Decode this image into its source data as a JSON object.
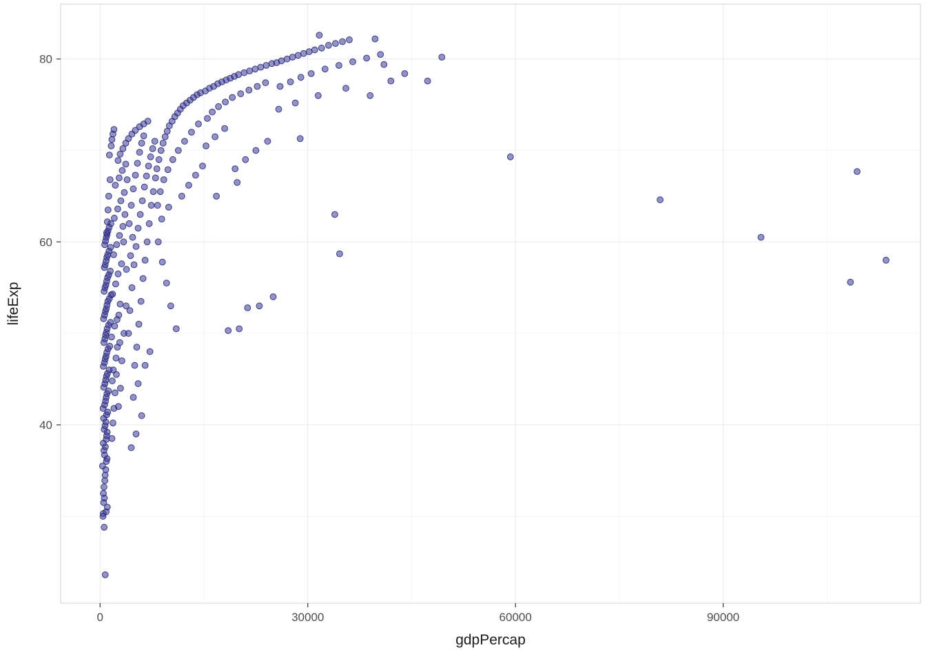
{
  "chart_data": {
    "type": "scatter",
    "title": "",
    "xlabel": "gdpPercap",
    "ylabel": "lifeExp",
    "x": {
      "label": "gdpPercap",
      "ticks": [
        0,
        30000,
        60000,
        90000
      ],
      "minor_ticks": [
        15000,
        45000,
        75000,
        105000
      ],
      "domain": [
        -5700,
        118500
      ]
    },
    "y": {
      "label": "lifeExp",
      "ticks": [
        40,
        60,
        80
      ],
      "minor_ticks": [
        30,
        50,
        70
      ],
      "domain": [
        20.5,
        86
      ]
    },
    "grid": "on",
    "legend": "none",
    "style": {
      "point_fill": "#3a3a9b",
      "point_stroke": "#22226e",
      "point_fill_opacity": 0.55,
      "point_stroke_opacity": 0.85,
      "point_radius": 4.4,
      "grid_major": "#e9e9e9",
      "grid_minor": "#f5f5f5",
      "panel_border": "#d9d9d9",
      "tick_mark": "#333333",
      "axis_text": "#4d4d4d",
      "axis_title": "#1a1a1a",
      "panel_bg": "#ffffff"
    },
    "points": [
      [
        737,
        23.6
      ],
      [
        590,
        28.8
      ],
      [
        460,
        30.3
      ],
      [
        880,
        30.5
      ],
      [
        1040,
        31.0
      ],
      [
        421,
        30.0
      ],
      [
        524,
        31.5
      ],
      [
        615,
        32.0
      ],
      [
        480,
        32.5
      ],
      [
        562,
        33.2
      ],
      [
        680,
        33.9
      ],
      [
        730,
        34.5
      ],
      [
        820,
        35.1
      ],
      [
        350,
        35.5
      ],
      [
        911,
        36.0
      ],
      [
        1005,
        36.3
      ],
      [
        640,
        36.7
      ],
      [
        555,
        37.2
      ],
      [
        760,
        37.6
      ],
      [
        470,
        38.0
      ],
      [
        889,
        38.4
      ],
      [
        950,
        38.8
      ],
      [
        1030,
        39.2
      ],
      [
        600,
        39.5
      ],
      [
        720,
        39.9
      ],
      [
        830,
        40.3
      ],
      [
        520,
        40.7
      ],
      [
        940,
        41.1
      ],
      [
        1100,
        41.4
      ],
      [
        430,
        41.8
      ],
      [
        660,
        42.2
      ],
      [
        780,
        42.6
      ],
      [
        880,
        43.0
      ],
      [
        990,
        43.4
      ],
      [
        1210,
        43.7
      ],
      [
        540,
        44.1
      ],
      [
        700,
        44.5
      ],
      [
        810,
        44.9
      ],
      [
        920,
        45.3
      ],
      [
        1060,
        45.6
      ],
      [
        1320,
        46.0
      ],
      [
        480,
        46.4
      ],
      [
        630,
        46.8
      ],
      [
        750,
        47.2
      ],
      [
        860,
        47.5
      ],
      [
        970,
        47.9
      ],
      [
        1150,
        48.3
      ],
      [
        1400,
        48.6
      ],
      [
        560,
        49.0
      ],
      [
        690,
        49.4
      ],
      [
        800,
        49.8
      ],
      [
        910,
        50.1
      ],
      [
        1020,
        50.5
      ],
      [
        1230,
        50.9
      ],
      [
        1500,
        51.2
      ],
      [
        510,
        51.6
      ],
      [
        650,
        52.0
      ],
      [
        770,
        52.4
      ],
      [
        890,
        52.7
      ],
      [
        1000,
        53.1
      ],
      [
        1120,
        53.5
      ],
      [
        1340,
        53.8
      ],
      [
        1580,
        54.2
      ],
      [
        590,
        54.6
      ],
      [
        710,
        55.0
      ],
      [
        840,
        55.3
      ],
      [
        960,
        55.7
      ],
      [
        1080,
        56.1
      ],
      [
        1260,
        56.4
      ],
      [
        1480,
        56.8
      ],
      [
        620,
        57.2
      ],
      [
        740,
        57.5
      ],
      [
        870,
        57.9
      ],
      [
        980,
        58.3
      ],
      [
        1110,
        58.6
      ],
      [
        1290,
        59.0
      ],
      [
        1530,
        59.4
      ],
      [
        670,
        59.7
      ],
      [
        790,
        60.1
      ],
      [
        900,
        60.5
      ],
      [
        1010,
        60.8
      ],
      [
        1140,
        61.2
      ],
      [
        1310,
        61.6
      ],
      [
        1550,
        62.0
      ],
      [
        950,
        61.0
      ],
      [
        1050,
        62.2
      ],
      [
        1150,
        63.5
      ],
      [
        1250,
        65.0
      ],
      [
        1450,
        66.8
      ],
      [
        1350,
        69.5
      ],
      [
        1600,
        70.5
      ],
      [
        1700,
        71.2
      ],
      [
        1850,
        71.8
      ],
      [
        2000,
        72.3
      ],
      [
        1700,
        38.5
      ],
      [
        1850,
        40.2
      ],
      [
        2000,
        41.8
      ],
      [
        2150,
        43.5
      ],
      [
        1750,
        44.8
      ],
      [
        1900,
        46.0
      ],
      [
        2300,
        47.3
      ],
      [
        2500,
        48.5
      ],
      [
        1650,
        49.6
      ],
      [
        2100,
        50.8
      ],
      [
        2700,
        52.0
      ],
      [
        2900,
        53.2
      ],
      [
        1800,
        54.3
      ],
      [
        2250,
        55.4
      ],
      [
        2600,
        56.5
      ],
      [
        3100,
        57.6
      ],
      [
        1950,
        58.6
      ],
      [
        2400,
        59.7
      ],
      [
        2800,
        60.7
      ],
      [
        3300,
        61.7
      ],
      [
        2050,
        62.6
      ],
      [
        2550,
        63.6
      ],
      [
        3000,
        64.5
      ],
      [
        3500,
        65.4
      ],
      [
        2200,
        66.2
      ],
      [
        2750,
        67.0
      ],
      [
        3200,
        67.8
      ],
      [
        3700,
        68.5
      ],
      [
        3900,
        66.8
      ],
      [
        3600,
        63.0
      ],
      [
        3400,
        60.0
      ],
      [
        3800,
        57.0
      ],
      [
        2350,
        45.5
      ],
      [
        2650,
        42.0
      ],
      [
        2950,
        44.0
      ],
      [
        3150,
        47.0
      ],
      [
        3450,
        50.0
      ],
      [
        3750,
        53.0
      ],
      [
        2850,
        49.0
      ],
      [
        2450,
        51.5
      ],
      [
        2600,
        68.9
      ],
      [
        2900,
        69.6
      ],
      [
        3300,
        70.2
      ],
      [
        3700,
        70.8
      ],
      [
        4100,
        71.3
      ],
      [
        4600,
        71.8
      ],
      [
        5100,
        72.2
      ],
      [
        5700,
        72.6
      ],
      [
        6300,
        72.9
      ],
      [
        6900,
        73.2
      ],
      [
        4500,
        37.5
      ],
      [
        5200,
        39.0
      ],
      [
        6000,
        41.0
      ],
      [
        4800,
        43.0
      ],
      [
        5500,
        44.5
      ],
      [
        6500,
        46.5
      ],
      [
        7200,
        48.0
      ],
      [
        4100,
        50.0
      ],
      [
        4300,
        52.5
      ],
      [
        4600,
        55.0
      ],
      [
        4900,
        57.5
      ],
      [
        5200,
        59.5
      ],
      [
        5500,
        61.5
      ],
      [
        5800,
        63.0
      ],
      [
        6100,
        64.5
      ],
      [
        6400,
        66.0
      ],
      [
        6700,
        67.2
      ],
      [
        7000,
        68.3
      ],
      [
        7300,
        69.3
      ],
      [
        7600,
        70.2
      ],
      [
        7900,
        71.0
      ],
      [
        4200,
        62.0
      ],
      [
        4500,
        64.0
      ],
      [
        4800,
        65.8
      ],
      [
        5100,
        67.3
      ],
      [
        5400,
        68.6
      ],
      [
        5700,
        69.8
      ],
      [
        6000,
        70.8
      ],
      [
        6300,
        71.6
      ],
      [
        4400,
        58.5
      ],
      [
        4700,
        60.5
      ],
      [
        5000,
        46.5
      ],
      [
        5300,
        48.5
      ],
      [
        5600,
        51.0
      ],
      [
        5900,
        53.5
      ],
      [
        6200,
        56.0
      ],
      [
        6500,
        58.0
      ],
      [
        6800,
        60.0
      ],
      [
        7100,
        62.0
      ],
      [
        7400,
        64.0
      ],
      [
        7700,
        65.5
      ],
      [
        8000,
        67.0
      ],
      [
        8200,
        68.0
      ],
      [
        8500,
        69.0
      ],
      [
        8800,
        70.0
      ],
      [
        9100,
        70.8
      ],
      [
        9400,
        71.5
      ],
      [
        9700,
        72.1
      ],
      [
        10000,
        72.7
      ],
      [
        10400,
        73.2
      ],
      [
        10800,
        73.7
      ],
      [
        11200,
        74.1
      ],
      [
        11600,
        74.5
      ],
      [
        12000,
        74.9
      ],
      [
        12500,
        75.2
      ],
      [
        13000,
        75.5
      ],
      [
        13500,
        75.8
      ],
      [
        14000,
        76.1
      ],
      [
        14500,
        76.3
      ],
      [
        8300,
        64.0
      ],
      [
        8700,
        65.5
      ],
      [
        9200,
        66.8
      ],
      [
        9800,
        67.9
      ],
      [
        10500,
        69.0
      ],
      [
        11300,
        70.0
      ],
      [
        12200,
        71.0
      ],
      [
        13200,
        72.0
      ],
      [
        14200,
        72.9
      ],
      [
        8400,
        60.0
      ],
      [
        9000,
        57.8
      ],
      [
        9600,
        55.5
      ],
      [
        10200,
        53.0
      ],
      [
        11000,
        50.5
      ],
      [
        8900,
        62.5
      ],
      [
        9900,
        63.8
      ],
      [
        11800,
        65.0
      ],
      [
        12800,
        66.2
      ],
      [
        13800,
        67.3
      ],
      [
        14800,
        68.3
      ],
      [
        15200,
        76.5
      ],
      [
        15800,
        76.8
      ],
      [
        16400,
        77.0
      ],
      [
        17000,
        77.3
      ],
      [
        17600,
        77.5
      ],
      [
        18200,
        77.7
      ],
      [
        18800,
        77.9
      ],
      [
        19400,
        78.1
      ],
      [
        20000,
        78.3
      ],
      [
        20800,
        78.5
      ],
      [
        21600,
        78.7
      ],
      [
        22400,
        78.9
      ],
      [
        23200,
        79.1
      ],
      [
        24000,
        79.3
      ],
      [
        24800,
        79.5
      ],
      [
        15500,
        73.5
      ],
      [
        16200,
        74.2
      ],
      [
        17100,
        74.8
      ],
      [
        18100,
        75.3
      ],
      [
        19100,
        75.8
      ],
      [
        20300,
        76.2
      ],
      [
        21500,
        76.6
      ],
      [
        22700,
        77.0
      ],
      [
        23900,
        77.4
      ],
      [
        15300,
        70.5
      ],
      [
        16600,
        71.5
      ],
      [
        18000,
        72.4
      ],
      [
        19500,
        68.0
      ],
      [
        21000,
        69.0
      ],
      [
        22500,
        70.0
      ],
      [
        24200,
        71.0
      ],
      [
        16800,
        65.0
      ],
      [
        19800,
        66.5
      ],
      [
        23000,
        53.0
      ],
      [
        21300,
        52.8
      ],
      [
        25000,
        54.0
      ],
      [
        18500,
        50.3
      ],
      [
        20100,
        50.5
      ],
      [
        25500,
        79.6
      ],
      [
        26200,
        79.8
      ],
      [
        27000,
        80.0
      ],
      [
        27800,
        80.2
      ],
      [
        28600,
        80.4
      ],
      [
        29400,
        80.6
      ],
      [
        30200,
        80.8
      ],
      [
        31000,
        81.0
      ],
      [
        32000,
        81.2
      ],
      [
        33000,
        81.5
      ],
      [
        34000,
        81.7
      ],
      [
        35000,
        81.9
      ],
      [
        36000,
        82.1
      ],
      [
        31656,
        82.6
      ],
      [
        39725,
        82.2
      ],
      [
        26000,
        77.0
      ],
      [
        27500,
        77.5
      ],
      [
        29000,
        78.0
      ],
      [
        30500,
        78.4
      ],
      [
        32500,
        78.9
      ],
      [
        34500,
        79.3
      ],
      [
        36500,
        79.7
      ],
      [
        38500,
        80.1
      ],
      [
        40500,
        80.5
      ],
      [
        25800,
        74.5
      ],
      [
        28200,
        75.2
      ],
      [
        31500,
        76.0
      ],
      [
        35500,
        76.8
      ],
      [
        28900,
        71.3
      ],
      [
        33900,
        63.0
      ],
      [
        34600,
        58.7
      ],
      [
        39000,
        76.0
      ],
      [
        41000,
        79.4
      ],
      [
        42000,
        77.6
      ],
      [
        44000,
        78.4
      ],
      [
        47300,
        77.6
      ],
      [
        49360,
        80.2
      ],
      [
        59265,
        69.3
      ],
      [
        80894,
        64.6
      ],
      [
        95458,
        60.5
      ],
      [
        108382,
        55.6
      ],
      [
        109348,
        67.7
      ],
      [
        113523,
        58.0
      ]
    ]
  }
}
